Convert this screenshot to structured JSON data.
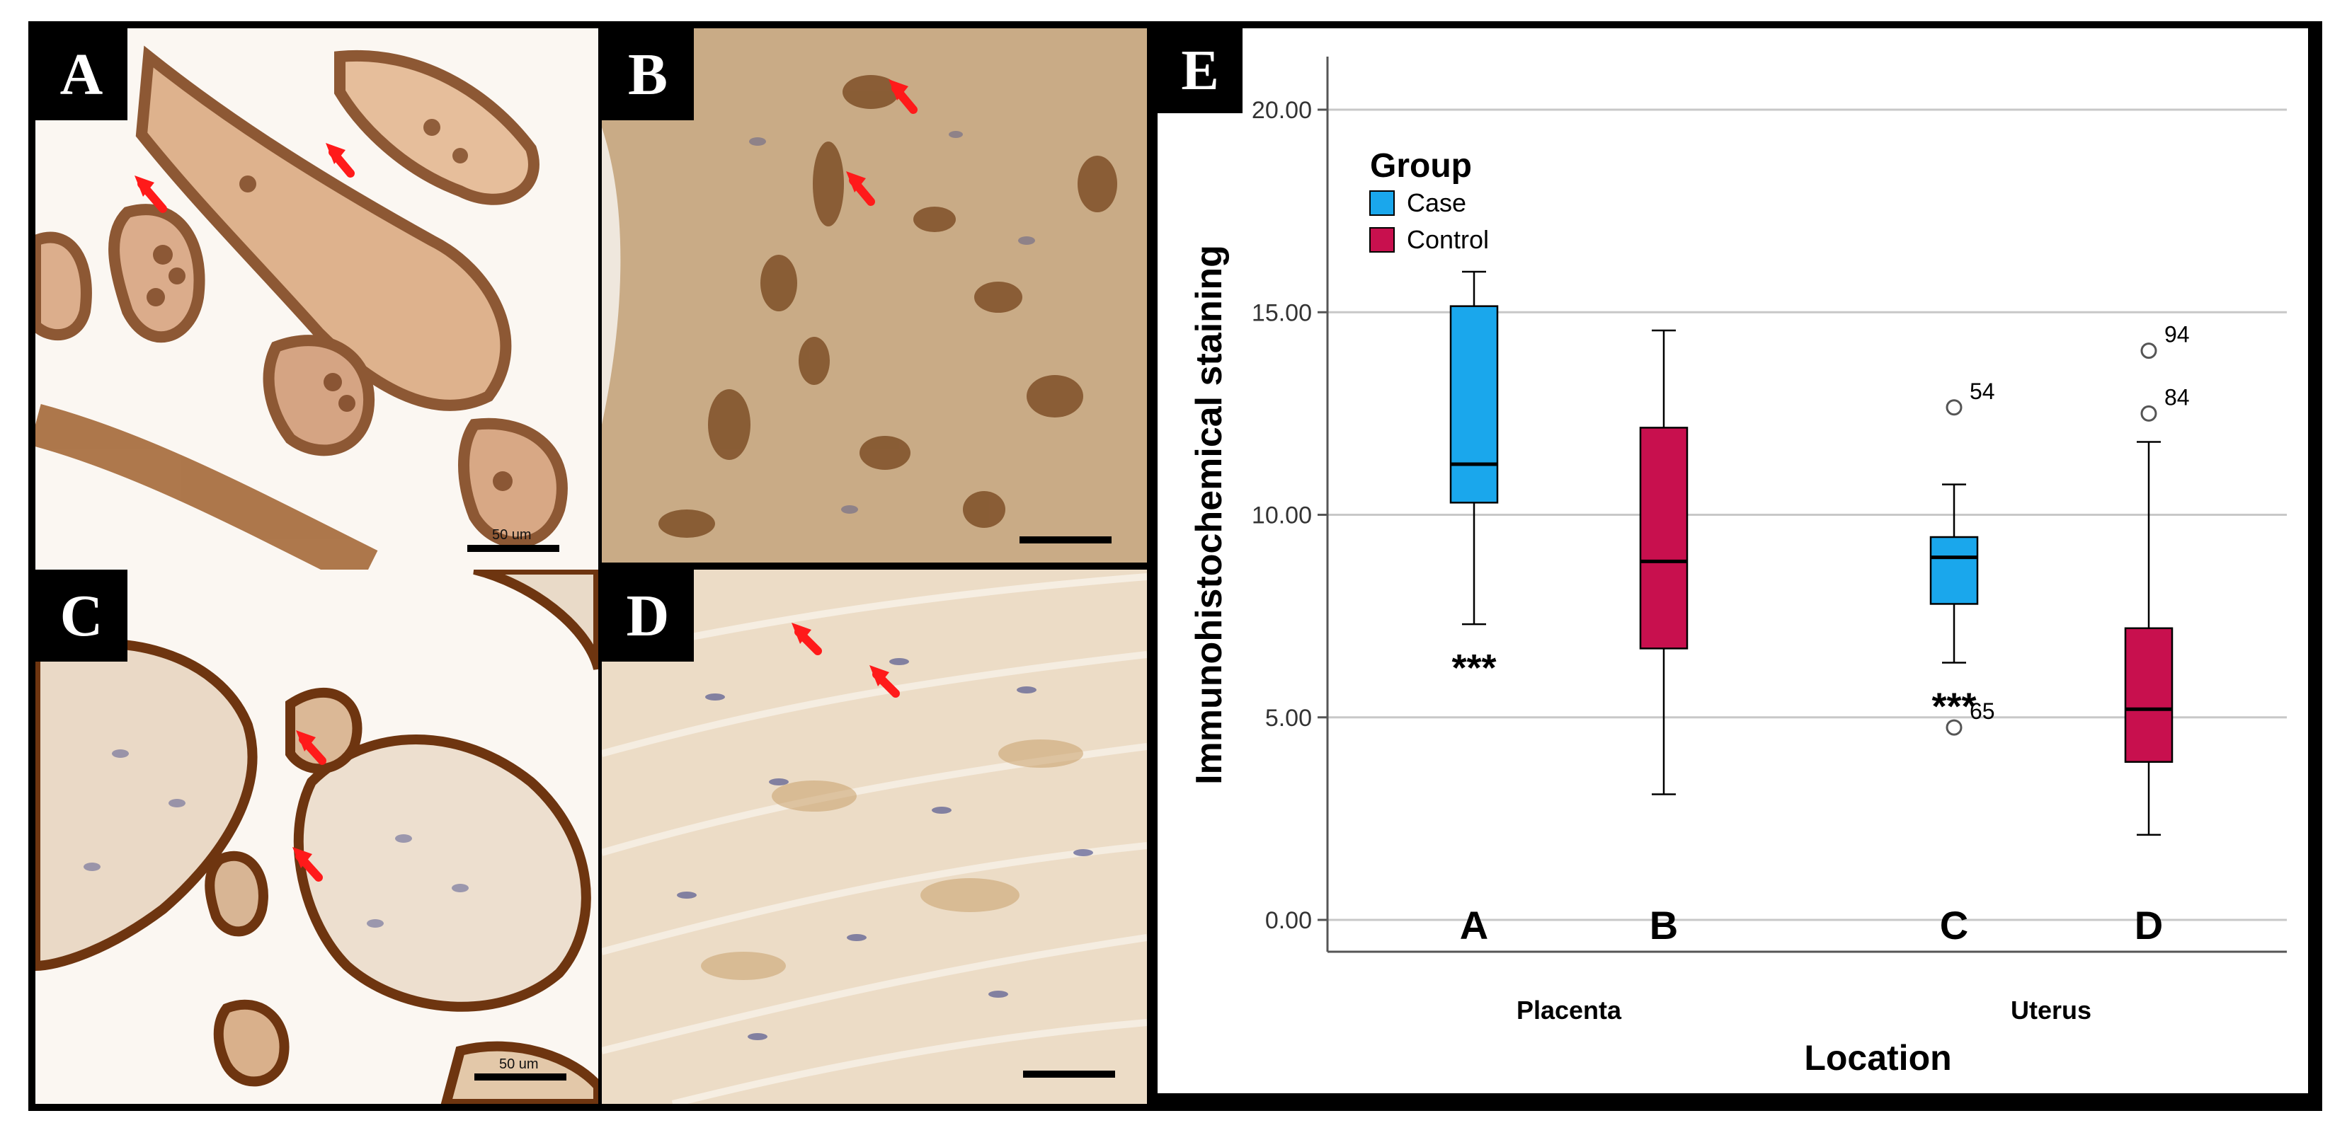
{
  "panels": [
    {
      "label": "A",
      "scale_text": "50 um",
      "stain": "strong"
    },
    {
      "label": "B",
      "scale_text": "",
      "stain": "strong"
    },
    {
      "label": "C",
      "scale_text": "50 um",
      "stain": "weak"
    },
    {
      "label": "D",
      "scale_text": "",
      "stain": "weak"
    }
  ],
  "colors": {
    "case": "#1aa7ec",
    "control": "#c8104e",
    "arrow": "#ff1a1a",
    "frame": "#000000",
    "gridline": "#c8c8c8",
    "tissue_strong": "#8b4a1f",
    "tissue_weak": "#c9a37a",
    "nuclei": "#4a4f8c"
  },
  "chart_data": {
    "type": "box",
    "panel_label": "E",
    "legend": {
      "title": "Group",
      "position": "top-left"
    },
    "ylabel": "Immunohistochemical staining",
    "xlabel": "Location",
    "ylim": [
      0,
      20
    ],
    "yticks": [
      "0.00",
      "5.00",
      "10.00",
      "15.00",
      "20.00"
    ],
    "grid": "horizontal",
    "groups": [
      "Placenta",
      "Uterus"
    ],
    "series": [
      {
        "name": "Case",
        "color": "#1aa7ec",
        "boxes": [
          {
            "group": "Placenta",
            "label": "A",
            "min": 7.3,
            "q1": 10.3,
            "median": 11.25,
            "q3": 15.15,
            "max": 16.0,
            "outliers": [],
            "significance": "***"
          },
          {
            "group": "Uterus",
            "label": "C",
            "min": 6.35,
            "q1": 7.8,
            "median": 8.95,
            "q3": 9.45,
            "max": 10.75,
            "outliers": [
              {
                "value": 12.65,
                "id": "54"
              },
              {
                "value": 4.75,
                "id": "65"
              }
            ],
            "significance": "***"
          }
        ]
      },
      {
        "name": "Control",
        "color": "#c8104e",
        "boxes": [
          {
            "group": "Placenta",
            "label": "B",
            "min": 3.1,
            "q1": 6.7,
            "median": 8.85,
            "q3": 12.15,
            "max": 14.55,
            "outliers": [],
            "significance": ""
          },
          {
            "group": "Uterus",
            "label": "D",
            "min": 2.1,
            "q1": 3.9,
            "median": 5.2,
            "q3": 7.2,
            "max": 11.8,
            "outliers": [
              {
                "value": 14.05,
                "id": "94"
              },
              {
                "value": 12.5,
                "id": "84"
              }
            ],
            "significance": ""
          }
        ]
      }
    ]
  }
}
